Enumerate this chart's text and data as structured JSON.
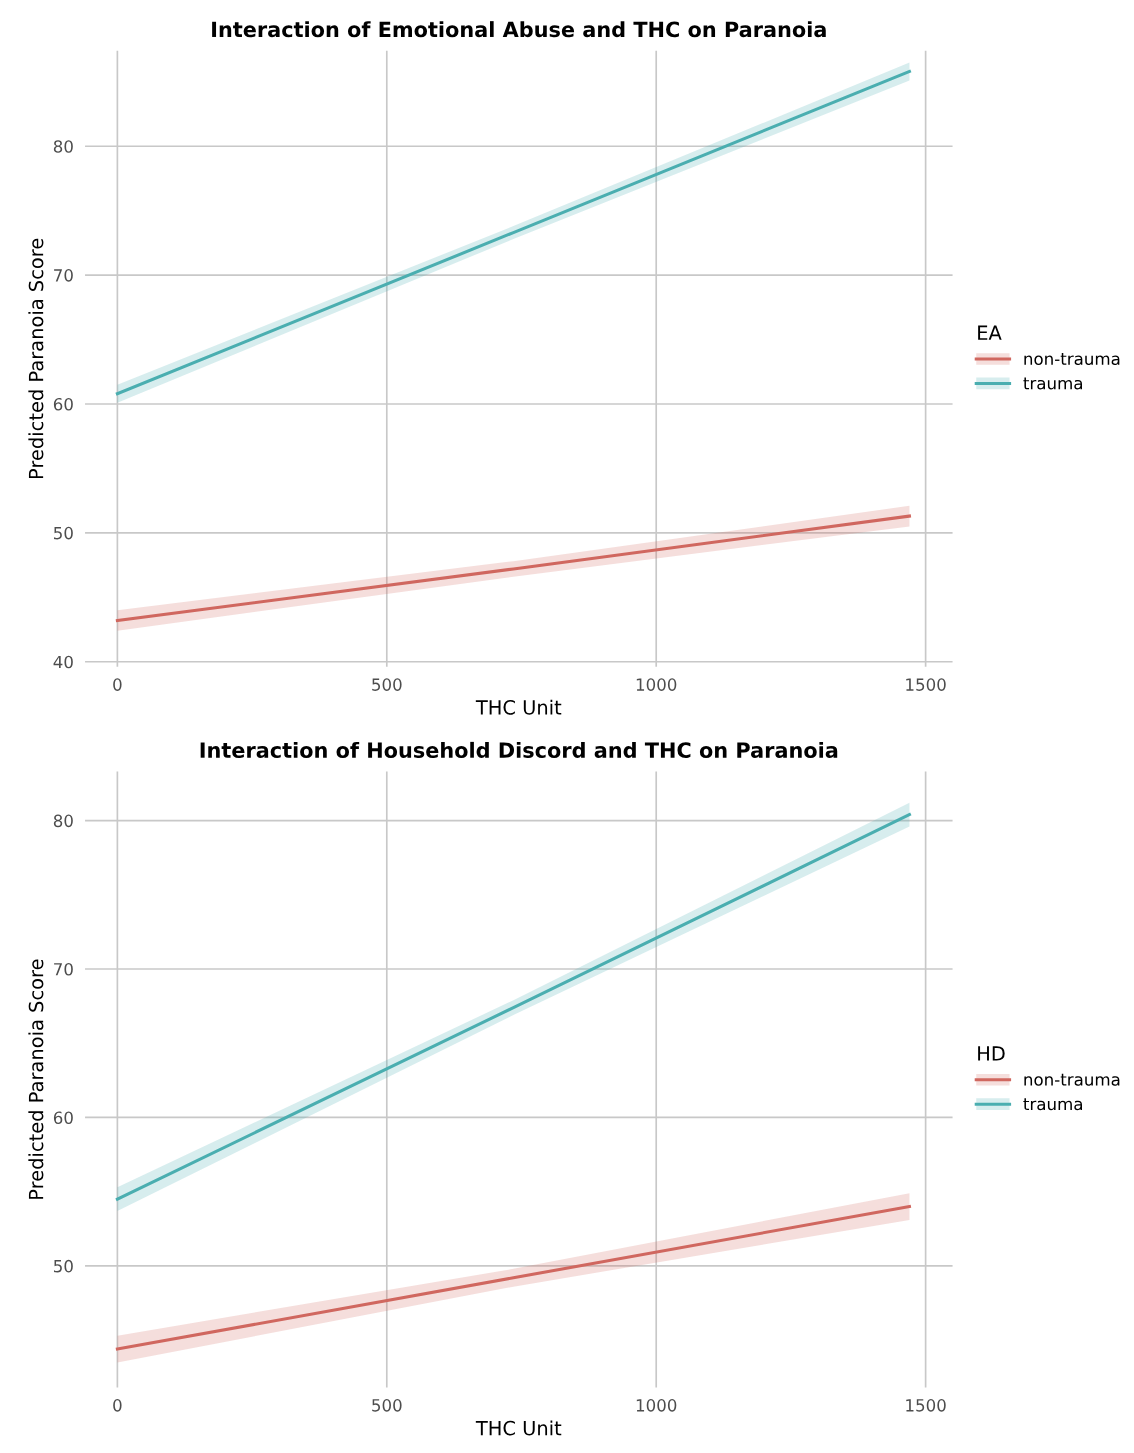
{
  "chart_data": [
    {
      "type": "line",
      "title": "Interaction of Emotional Abuse and THC on Paranoia",
      "xlabel": "THC Unit",
      "ylabel": "Predicted Paranoia Score",
      "legend_title": "EA",
      "legend": "right",
      "grid": true,
      "line_style": "solid",
      "xlim": [
        -60,
        1550
      ],
      "xticks": [
        0,
        500,
        1000,
        1500
      ],
      "ylim": [
        39.6,
        87.4
      ],
      "yticks": [
        40,
        50,
        60,
        70,
        80
      ],
      "series": [
        {
          "name": "non-trauma",
          "color": "#d0675f",
          "x": [
            0,
            735,
            1470
          ],
          "values": [
            43.2,
            47.2,
            51.3
          ],
          "lower": [
            42.4,
            46.6,
            50.5
          ],
          "upper": [
            44.0,
            47.8,
            52.1
          ]
        },
        {
          "name": "trauma",
          "color": "#4aaeb0",
          "x": [
            0,
            735,
            1470
          ],
          "values": [
            60.8,
            73.3,
            85.8
          ],
          "lower": [
            60.1,
            72.8,
            85.1
          ],
          "upper": [
            61.5,
            73.8,
            86.5
          ]
        }
      ]
    },
    {
      "type": "line",
      "title": "Interaction of Household Discord and THC on Paranoia",
      "xlabel": "THC Unit",
      "ylabel": "Predicted Paranoia Score",
      "legend_title": "HD",
      "legend": "right",
      "grid": true,
      "line_style": "solid",
      "xlim": [
        -60,
        1550
      ],
      "xticks": [
        0,
        500,
        1000,
        1500
      ],
      "ylim": [
        41.8,
        83.3
      ],
      "yticks": [
        50,
        60,
        70,
        80
      ],
      "series": [
        {
          "name": "non-trauma",
          "color": "#d0675f",
          "x": [
            0,
            735,
            1470
          ],
          "values": [
            44.4,
            49.2,
            54.0
          ],
          "lower": [
            43.5,
            48.6,
            53.1
          ],
          "upper": [
            45.3,
            49.8,
            54.9
          ]
        },
        {
          "name": "trauma",
          "color": "#4aaeb0",
          "x": [
            0,
            735,
            1470
          ],
          "values": [
            54.5,
            67.4,
            80.4
          ],
          "lower": [
            53.7,
            66.9,
            79.6
          ],
          "upper": [
            55.3,
            67.9,
            81.2
          ]
        }
      ]
    }
  ]
}
